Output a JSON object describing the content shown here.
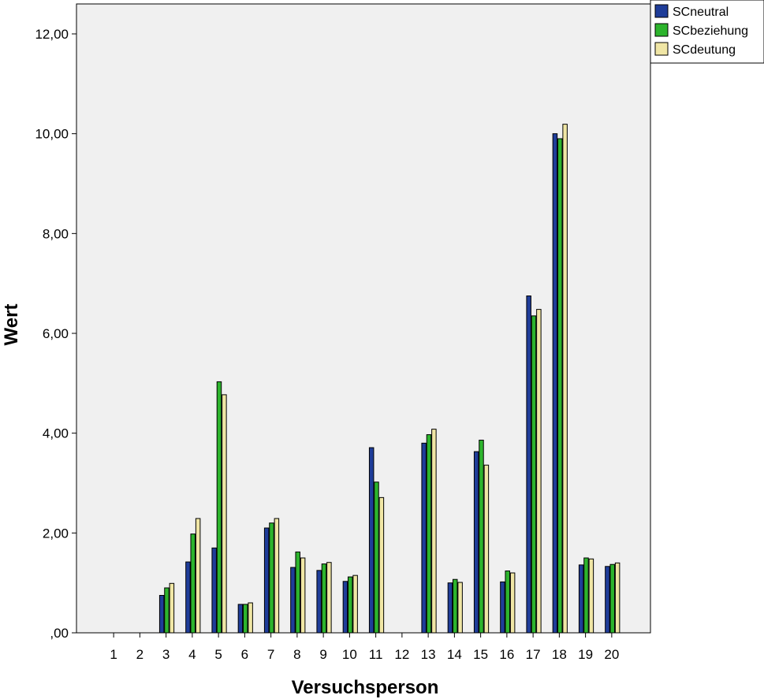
{
  "chart_data": {
    "type": "bar",
    "xlabel": "Versuchsperson",
    "ylabel": "Wert",
    "ylim": [
      0,
      12.6
    ],
    "yticks": [
      0,
      2,
      4,
      6,
      8,
      10,
      12
    ],
    "ytick_labels": [
      ",00",
      "2,00",
      "4,00",
      "6,00",
      "8,00",
      "10,00",
      "12,00"
    ],
    "categories": [
      "1",
      "2",
      "3",
      "4",
      "5",
      "6",
      "7",
      "8",
      "9",
      "10",
      "11",
      "12",
      "13",
      "14",
      "15",
      "16",
      "17",
      "18",
      "19",
      "20"
    ],
    "series": [
      {
        "name": "SCneutral",
        "color": "#1f3d99",
        "values": [
          0,
          0,
          0.75,
          1.42,
          1.7,
          0.57,
          2.1,
          1.31,
          1.25,
          1.03,
          3.71,
          0,
          3.8,
          1.0,
          3.63,
          1.02,
          6.75,
          10.0,
          1.36,
          1.33
        ]
      },
      {
        "name": "SCbeziehung",
        "color": "#2db42d",
        "values": [
          0,
          0,
          0.9,
          1.98,
          5.03,
          0.57,
          2.2,
          1.62,
          1.38,
          1.12,
          3.02,
          0,
          3.97,
          1.07,
          3.86,
          1.24,
          6.35,
          9.9,
          1.5,
          1.37
        ]
      },
      {
        "name": "SCdeutung",
        "color": "#f0e6a5",
        "values": [
          0,
          0,
          0.99,
          2.29,
          4.77,
          0.6,
          2.29,
          1.5,
          1.41,
          1.15,
          2.71,
          0,
          4.08,
          1.01,
          3.36,
          1.2,
          6.48,
          10.19,
          1.48,
          1.4
        ]
      }
    ],
    "grid": false,
    "legend_position": "top-right"
  }
}
